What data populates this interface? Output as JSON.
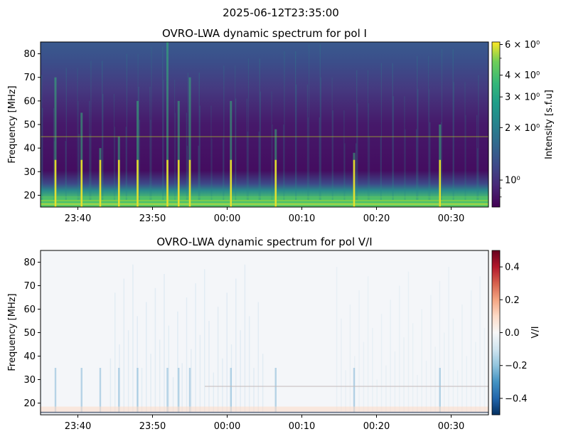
{
  "suptitle": "2025-06-12T23:35:00",
  "chart_data": [
    {
      "type": "heatmap",
      "title": "OVRO-LWA dynamic spectrum for pol I",
      "ylabel": "Frequency [MHz]",
      "xlabel": "",
      "x_ticks": [
        "23:40",
        "23:50",
        "00:00",
        "00:10",
        "00:20",
        "00:30"
      ],
      "x_tick_minutes": [
        5,
        15,
        25,
        35,
        45,
        55
      ],
      "x_range_minutes": [
        0,
        60
      ],
      "x_start": "23:35",
      "y_ticks": [
        20,
        30,
        40,
        50,
        60,
        70,
        80
      ],
      "ylim": [
        15,
        85
      ],
      "colormap": "viridis",
      "color_scale": "log",
      "clim": [
        0.7,
        6.2
      ],
      "colorbar_label": "Intensity [s.f.u]",
      "colorbar_ticks": [
        {
          "value": 6,
          "label": "6 × 10⁰"
        },
        {
          "value": 4,
          "label": "4 × 10⁰"
        },
        {
          "value": 3,
          "label": "3 × 10⁰"
        },
        {
          "value": 2,
          "label": "2 × 10⁰"
        },
        {
          "value": 1,
          "label": "10⁰"
        }
      ],
      "features": {
        "background_high_freq": 1.2,
        "background_mid_freq": 0.8,
        "low_band_level": 3.5,
        "horizontal_line_freq": 45,
        "bursts_minutes": [
          2,
          5.5,
          8,
          10.5,
          13,
          17,
          18.5,
          20,
          25.5,
          31.5,
          42,
          53.5
        ]
      }
    },
    {
      "type": "heatmap",
      "title": "OVRO-LWA dynamic spectrum for pol V/I",
      "ylabel": "Frequency [MHz]",
      "xlabel": "",
      "x_ticks": [
        "23:40",
        "23:50",
        "00:00",
        "00:10",
        "00:20",
        "00:30"
      ],
      "x_tick_minutes": [
        5,
        15,
        25,
        35,
        45,
        55
      ],
      "x_range_minutes": [
        0,
        60
      ],
      "y_ticks": [
        20,
        30,
        40,
        50,
        60,
        70,
        80
      ],
      "ylim": [
        15,
        85
      ],
      "colormap": "RdBu_r",
      "color_scale": "linear",
      "clim": [
        -0.5,
        0.5
      ],
      "colorbar_label": "V/I",
      "colorbar_ticks": [
        {
          "value": 0.4,
          "label": "0.4"
        },
        {
          "value": 0.2,
          "label": "0.2"
        },
        {
          "value": 0.0,
          "label": "0.0"
        },
        {
          "value": -0.2,
          "label": "−0.2"
        },
        {
          "value": -0.4,
          "label": "−0.4"
        }
      ]
    }
  ]
}
